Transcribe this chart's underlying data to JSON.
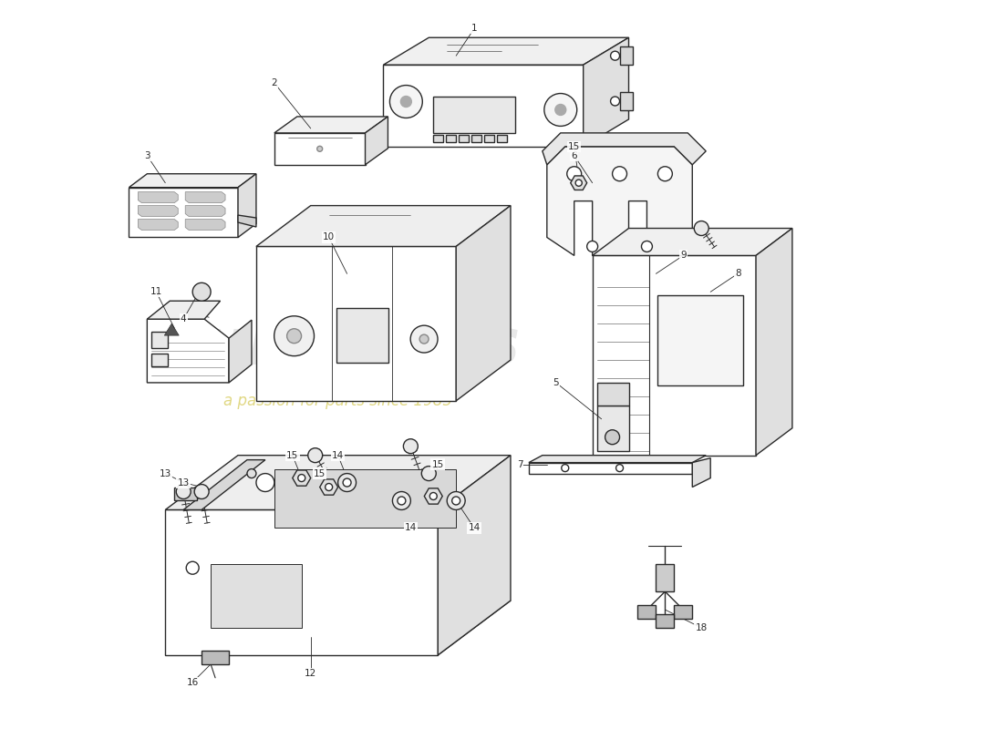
{
  "bg_color": "#ffffff",
  "lc": "#2a2a2a",
  "lw": 1.0,
  "wm_gray": "#cccccc",
  "wm_yellow": "#c8b820",
  "figsize": [
    11.0,
    8.0
  ],
  "dpi": 100
}
